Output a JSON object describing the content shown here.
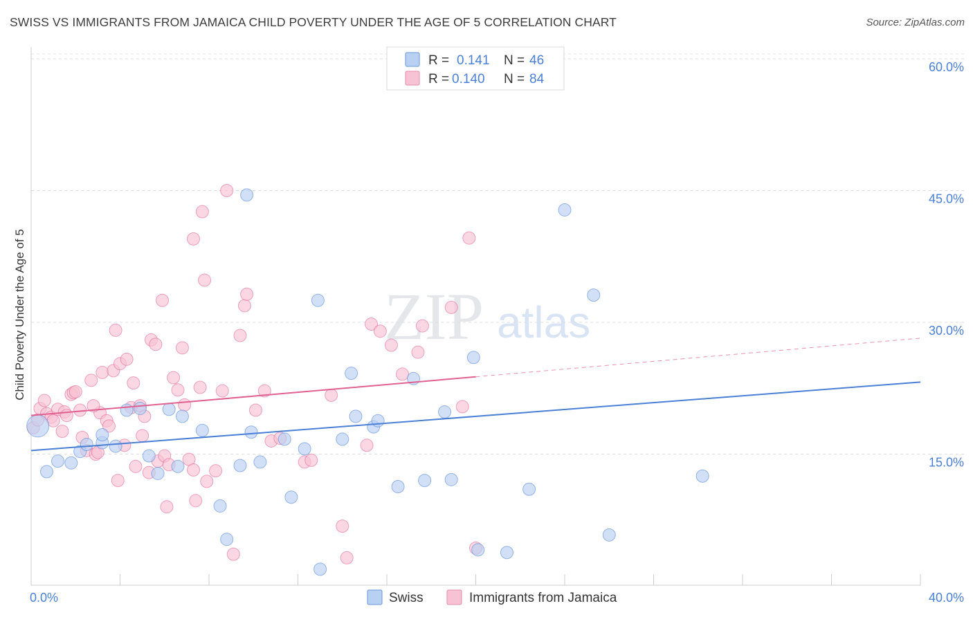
{
  "header": {
    "title": "SWISS VS IMMIGRANTS FROM JAMAICA CHILD POVERTY UNDER THE AGE OF 5 CORRELATION CHART",
    "source": "Source: ZipAtlas.com"
  },
  "watermark": {
    "part1": "ZIP",
    "part2": "atlas"
  },
  "legend_top": [
    {
      "r_label": "R =",
      "r_value": "0.141",
      "n_label": "N =",
      "n_value": "46"
    },
    {
      "r_label": "R =",
      "r_value": "0.140",
      "n_label": "N =",
      "n_value": "84"
    }
  ],
  "chart_data": {
    "type": "scatter",
    "title": "SWISS VS IMMIGRANTS FROM JAMAICA CHILD POVERTY UNDER THE AGE OF 5 CORRELATION CHART",
    "xlabel": "",
    "ylabel": "Child Poverty Under the Age of 5",
    "xlim": [
      0,
      40
    ],
    "ylim": [
      0,
      60
    ],
    "x_tick_labels": [
      "0.0%",
      "40.0%"
    ],
    "y_ticks": [
      15,
      30,
      45,
      60
    ],
    "y_tick_labels": [
      "15.0%",
      "30.0%",
      "45.0%",
      "60.0%"
    ],
    "grid": true,
    "legend_position": "bottom-center",
    "colors": {
      "swiss": "#4a7fd6",
      "jamaica": "#e0608f",
      "swiss_fill": "#b8d0f2",
      "jamaica_fill": "#f7c2d3"
    },
    "series": [
      {
        "name": "Swiss",
        "trend": {
          "x": [
            0,
            40
          ],
          "y": [
            15.4,
            23.2
          ],
          "solid_until": 40
        },
        "points": [
          [
            0.3,
            18.2
          ],
          [
            0.7,
            13.0
          ],
          [
            1.2,
            14.2
          ],
          [
            1.8,
            14.0
          ],
          [
            2.2,
            15.3
          ],
          [
            2.5,
            16.1
          ],
          [
            3.2,
            16.3
          ],
          [
            3.8,
            15.9
          ],
          [
            4.3,
            20.0
          ],
          [
            4.9,
            20.2
          ],
          [
            5.3,
            14.8
          ],
          [
            5.7,
            12.8
          ],
          [
            6.2,
            20.1
          ],
          [
            6.6,
            13.6
          ],
          [
            6.8,
            19.3
          ],
          [
            7.7,
            17.7
          ],
          [
            8.5,
            9.1
          ],
          [
            8.8,
            5.3
          ],
          [
            9.4,
            13.7
          ],
          [
            9.9,
            17.5
          ],
          [
            10.3,
            14.1
          ],
          [
            11.4,
            16.7
          ],
          [
            11.7,
            10.1
          ],
          [
            12.3,
            15.6
          ],
          [
            12.9,
            32.5
          ],
          [
            13.0,
            1.9
          ],
          [
            14.0,
            16.7
          ],
          [
            14.4,
            24.2
          ],
          [
            14.6,
            19.3
          ],
          [
            15.4,
            18.1
          ],
          [
            15.6,
            18.8
          ],
          [
            16.5,
            11.3
          ],
          [
            17.2,
            23.6
          ],
          [
            17.7,
            12.0
          ],
          [
            18.6,
            19.8
          ],
          [
            18.9,
            12.1
          ],
          [
            19.9,
            26.0
          ],
          [
            20.1,
            4.1
          ],
          [
            21.4,
            3.8
          ],
          [
            22.4,
            11.0
          ],
          [
            24.0,
            42.8
          ],
          [
            25.3,
            33.1
          ],
          [
            26.0,
            5.8
          ],
          [
            30.2,
            12.5
          ],
          [
            3.2,
            17.2
          ],
          [
            9.7,
            44.5
          ]
        ]
      },
      {
        "name": "Immigrants from Jamaica",
        "trend": {
          "x": [
            0,
            40
          ],
          "y": [
            19.4,
            28.2
          ],
          "solid_until": 20
        },
        "points": [
          [
            0.1,
            18.0
          ],
          [
            0.3,
            18.9
          ],
          [
            0.4,
            20.2
          ],
          [
            0.6,
            21.1
          ],
          [
            0.7,
            19.6
          ],
          [
            0.9,
            19.2
          ],
          [
            1.0,
            18.8
          ],
          [
            1.2,
            20.1
          ],
          [
            1.4,
            17.6
          ],
          [
            1.5,
            19.8
          ],
          [
            1.6,
            19.4
          ],
          [
            1.8,
            21.8
          ],
          [
            1.9,
            22.0
          ],
          [
            2.0,
            22.1
          ],
          [
            2.2,
            20.0
          ],
          [
            2.3,
            16.9
          ],
          [
            2.5,
            15.4
          ],
          [
            2.7,
            23.4
          ],
          [
            2.9,
            15.0
          ],
          [
            3.0,
            15.2
          ],
          [
            3.1,
            19.7
          ],
          [
            3.2,
            24.3
          ],
          [
            3.4,
            18.8
          ],
          [
            3.5,
            18.2
          ],
          [
            3.7,
            24.5
          ],
          [
            3.8,
            29.1
          ],
          [
            3.9,
            12.0
          ],
          [
            4.0,
            25.3
          ],
          [
            4.2,
            16.0
          ],
          [
            4.3,
            25.8
          ],
          [
            4.5,
            20.3
          ],
          [
            4.6,
            23.1
          ],
          [
            4.7,
            13.6
          ],
          [
            4.9,
            20.5
          ],
          [
            5.0,
            17.1
          ],
          [
            5.1,
            19.3
          ],
          [
            5.3,
            12.9
          ],
          [
            5.4,
            28.0
          ],
          [
            5.6,
            27.5
          ],
          [
            5.7,
            14.2
          ],
          [
            5.9,
            32.5
          ],
          [
            6.0,
            14.8
          ],
          [
            6.1,
            9.0
          ],
          [
            6.2,
            13.8
          ],
          [
            6.4,
            23.7
          ],
          [
            6.6,
            22.3
          ],
          [
            6.8,
            27.1
          ],
          [
            6.9,
            20.6
          ],
          [
            7.1,
            14.4
          ],
          [
            7.3,
            13.2
          ],
          [
            7.4,
            9.7
          ],
          [
            7.6,
            22.6
          ],
          [
            7.7,
            42.6
          ],
          [
            7.8,
            34.8
          ],
          [
            7.9,
            11.9
          ],
          [
            7.3,
            39.5
          ],
          [
            8.3,
            13.1
          ],
          [
            8.6,
            22.2
          ],
          [
            8.8,
            45.0
          ],
          [
            9.1,
            3.6
          ],
          [
            9.4,
            28.5
          ],
          [
            9.6,
            31.9
          ],
          [
            9.7,
            33.2
          ],
          [
            10.1,
            20.0
          ],
          [
            10.5,
            22.2
          ],
          [
            10.8,
            16.5
          ],
          [
            11.2,
            16.8
          ],
          [
            12.3,
            14.1
          ],
          [
            12.6,
            14.3
          ],
          [
            13.5,
            21.7
          ],
          [
            14.0,
            6.8
          ],
          [
            14.2,
            3.2
          ],
          [
            15.1,
            16.0
          ],
          [
            15.3,
            29.8
          ],
          [
            15.7,
            29.0
          ],
          [
            16.2,
            27.4
          ],
          [
            16.7,
            24.1
          ],
          [
            17.4,
            26.6
          ],
          [
            17.6,
            29.6
          ],
          [
            18.9,
            31.7
          ],
          [
            19.4,
            20.4
          ],
          [
            19.7,
            39.6
          ],
          [
            20.0,
            4.3
          ],
          [
            2.8,
            20.5
          ]
        ]
      }
    ]
  },
  "legend_bottom": [
    {
      "label": "Swiss"
    },
    {
      "label": "Immigrants from Jamaica"
    }
  ]
}
